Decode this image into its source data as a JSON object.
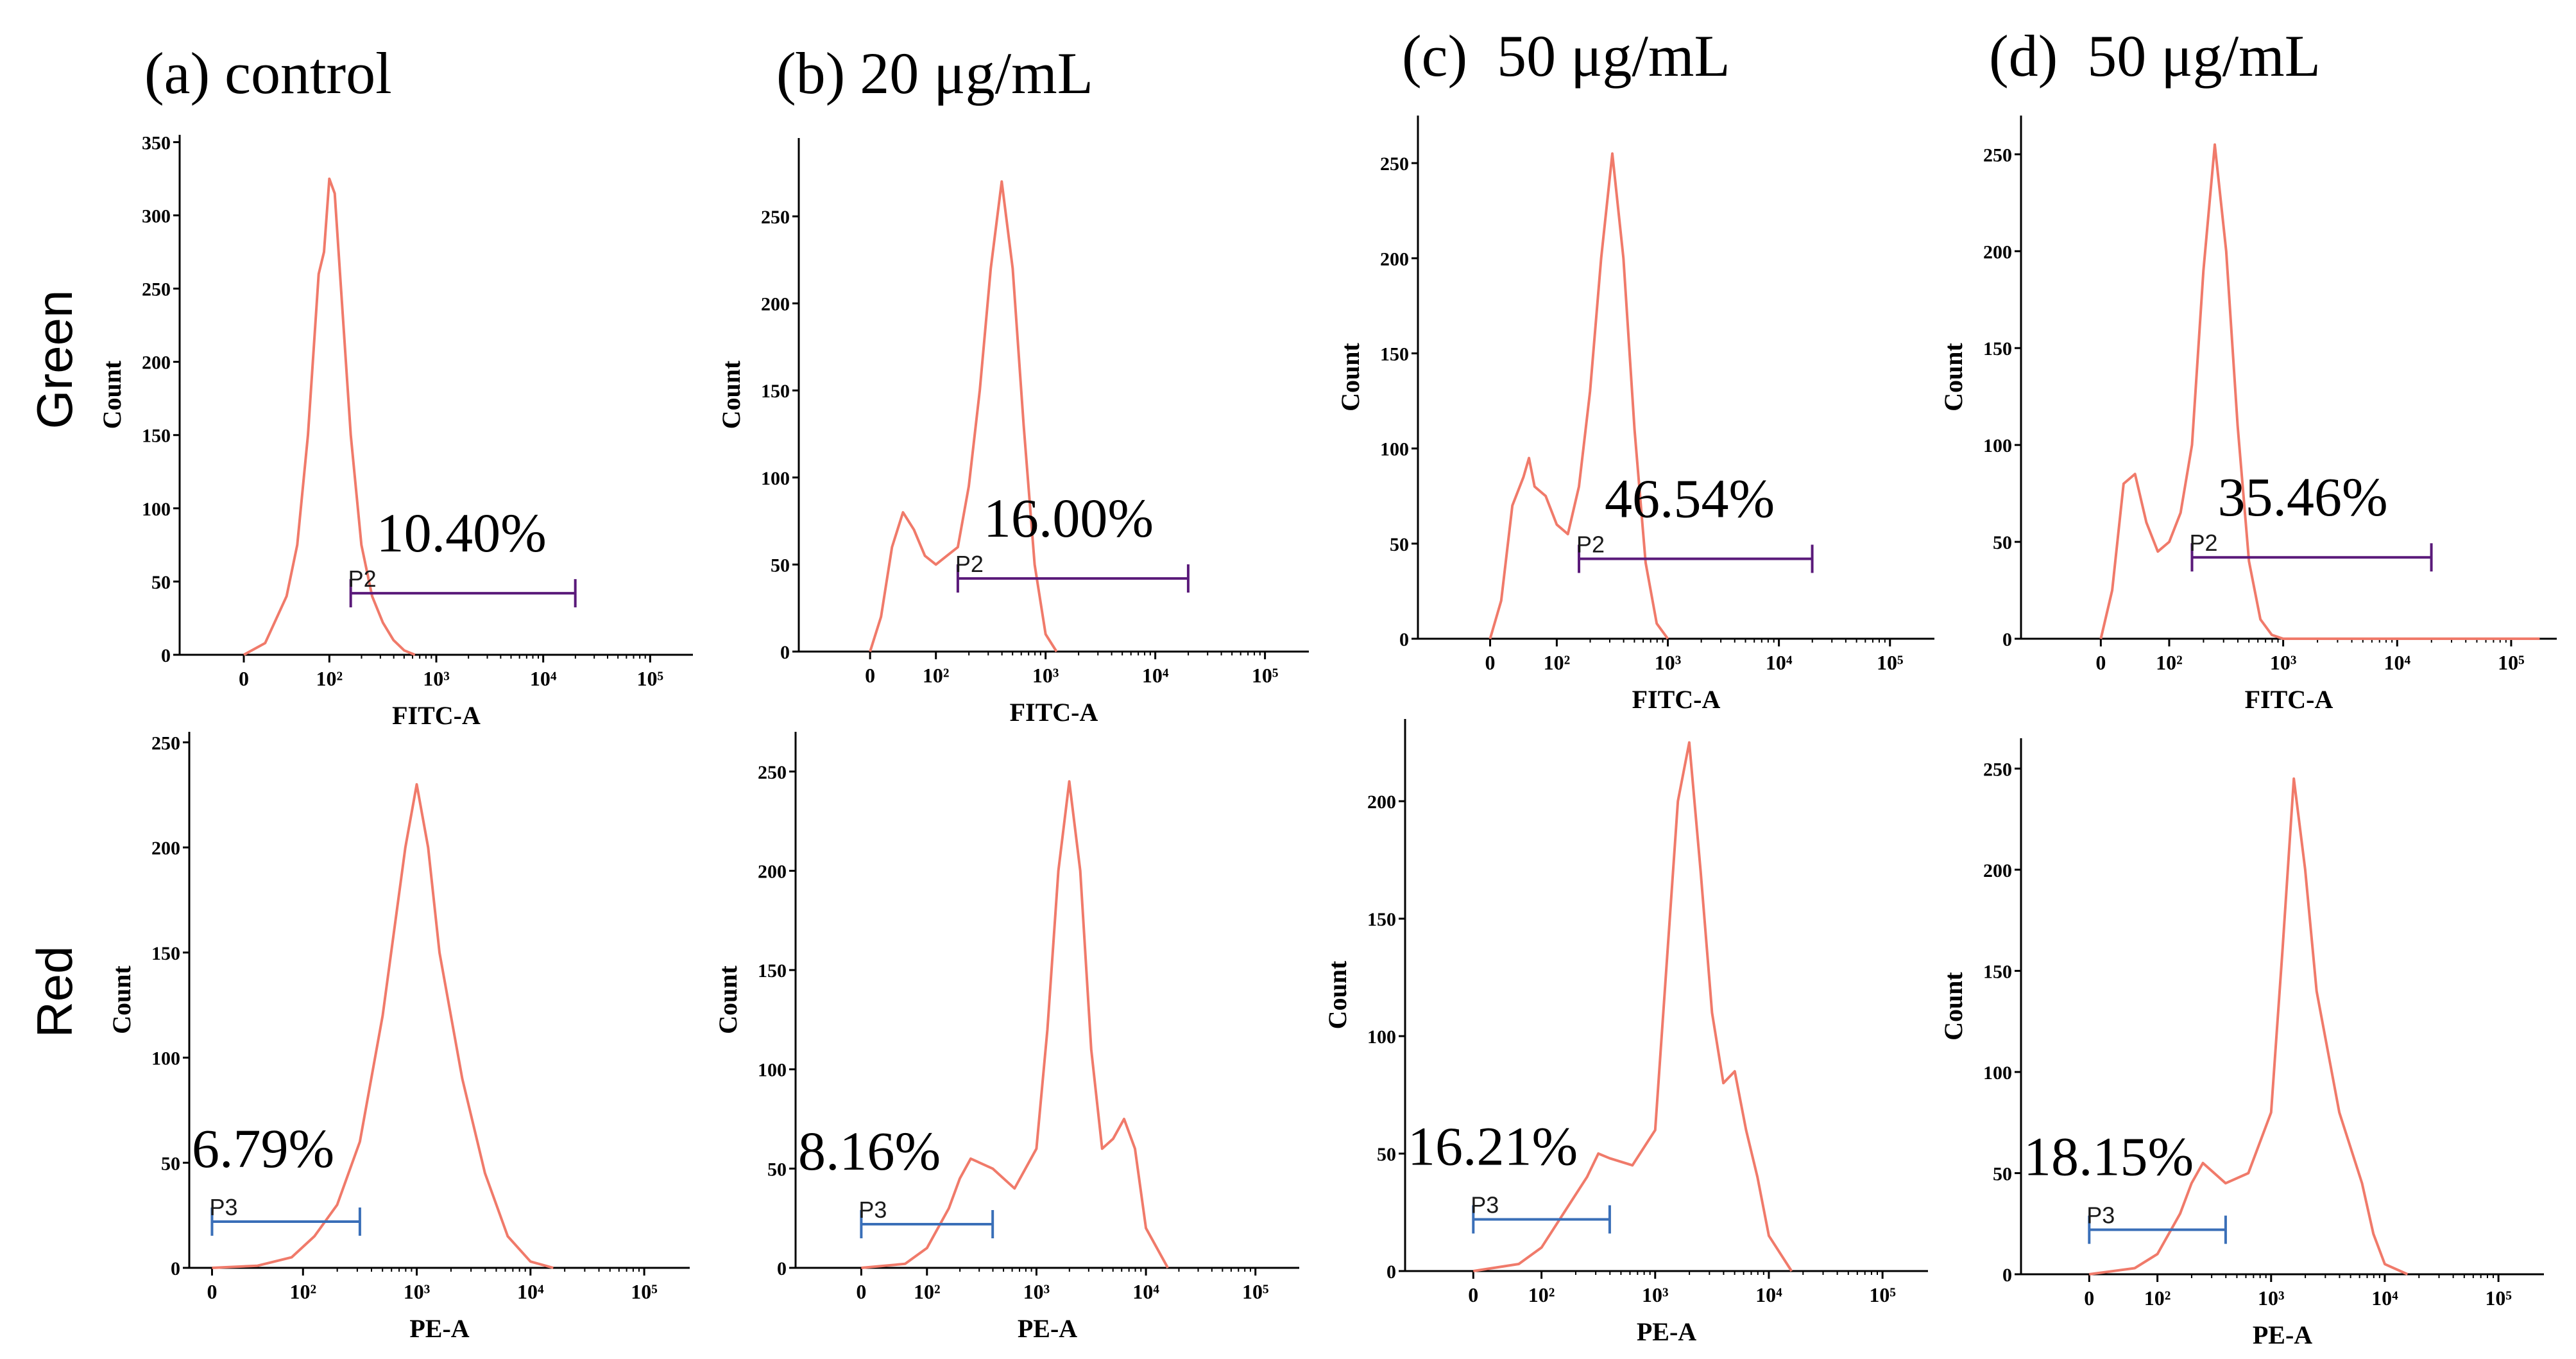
{
  "figure": {
    "row_labels": [
      "Green",
      "Red"
    ],
    "columns": [
      {
        "title": "(a) control"
      },
      {
        "title": "(b) 20 μg/mL"
      },
      {
        "title": "(c)  50 μg/mL"
      },
      {
        "title": "(d)  50 μg/mL"
      }
    ]
  },
  "colors": {
    "curve": "#f07a6a",
    "gate_green": "#5a1a7a",
    "gate_red": "#3a6fb8",
    "axis": "#000000"
  },
  "chart_data": [
    {
      "id": "a-green",
      "type": "line",
      "title": "(a) control",
      "row": "Green",
      "xlabel": "FITC-A",
      "ylabel": "Count",
      "x_ticks": [
        "0",
        "10²",
        "10³",
        "10⁴",
        "10⁵"
      ],
      "y_ticks": [
        0,
        50,
        100,
        150,
        200,
        250,
        300,
        350
      ],
      "ylim": [
        0,
        355
      ],
      "x_unit": "log10 intensity (0 tick at 1.20)",
      "x": [
        1.2,
        1.4,
        1.6,
        1.7,
        1.8,
        1.9,
        1.95,
        2.0,
        2.05,
        2.1,
        2.2,
        2.3,
        2.4,
        2.5,
        2.6,
        2.7,
        2.8
      ],
      "y": [
        0,
        8,
        40,
        75,
        150,
        260,
        275,
        325,
        315,
        260,
        150,
        75,
        40,
        22,
        10,
        3,
        0
      ],
      "gate": {
        "name": "P2",
        "percent": "10.40%",
        "x_start": 2.2,
        "x_end": 4.3,
        "y_level": 42
      }
    },
    {
      "id": "b-green",
      "type": "line",
      "title": "(b) 20 μg/mL",
      "row": "Green",
      "xlabel": "FITC-A",
      "ylabel": "Count",
      "x_ticks": [
        "0",
        "10²",
        "10³",
        "10⁴",
        "10⁵"
      ],
      "y_ticks": [
        0,
        50,
        100,
        150,
        200,
        250
      ],
      "ylim": [
        0,
        295
      ],
      "x_unit": "log10 intensity (0 tick at 1.40)",
      "x": [
        1.4,
        1.5,
        1.6,
        1.7,
        1.8,
        1.9,
        2.0,
        2.1,
        2.2,
        2.3,
        2.4,
        2.5,
        2.6,
        2.7,
        2.8,
        2.9,
        3.0,
        3.1
      ],
      "y": [
        0,
        20,
        60,
        80,
        70,
        55,
        50,
        55,
        60,
        95,
        150,
        220,
        270,
        220,
        130,
        50,
        10,
        0
      ],
      "gate": {
        "name": "P2",
        "percent": "16.00%",
        "x_start": 2.2,
        "x_end": 4.3,
        "y_level": 42
      }
    },
    {
      "id": "c-green",
      "type": "line",
      "title": "(c)  50 μg/mL",
      "row": "Green",
      "xlabel": "FITC-A",
      "ylabel": "Count",
      "x_ticks": [
        "0",
        "10²",
        "10³",
        "10⁴",
        "10⁵"
      ],
      "y_ticks": [
        0,
        50,
        100,
        150,
        200,
        250
      ],
      "ylim": [
        0,
        275
      ],
      "x_unit": "log10 intensity (0 tick at 1.40)",
      "x": [
        1.4,
        1.5,
        1.6,
        1.7,
        1.75,
        1.8,
        1.9,
        2.0,
        2.1,
        2.2,
        2.3,
        2.4,
        2.5,
        2.6,
        2.7,
        2.8,
        2.9,
        3.0
      ],
      "y": [
        0,
        20,
        70,
        85,
        95,
        80,
        75,
        60,
        55,
        80,
        130,
        200,
        255,
        200,
        110,
        40,
        8,
        0
      ],
      "gate": {
        "name": "P2",
        "percent": "46.54%",
        "x_start": 2.2,
        "x_end": 4.3,
        "y_level": 42
      }
    },
    {
      "id": "d-green",
      "type": "line",
      "title": "(d)  50 μg/mL",
      "row": "Green",
      "xlabel": "FITC-A",
      "ylabel": "Count",
      "x_ticks": [
        "0",
        "10²",
        "10³",
        "10⁴",
        "10⁵"
      ],
      "y_ticks": [
        0,
        50,
        100,
        150,
        200,
        250
      ],
      "ylim": [
        0,
        270
      ],
      "x_unit": "log10 intensity (0 tick at 1.40)",
      "x": [
        1.4,
        1.5,
        1.6,
        1.7,
        1.8,
        1.9,
        2.0,
        2.1,
        2.2,
        2.3,
        2.4,
        2.5,
        2.6,
        2.7,
        2.8,
        2.9,
        3.0,
        5.25
      ],
      "y": [
        0,
        25,
        80,
        85,
        60,
        45,
        50,
        65,
        100,
        190,
        255,
        200,
        110,
        40,
        10,
        2,
        0,
        0
      ],
      "gate": {
        "name": "P2",
        "percent": "35.46%",
        "x_start": 2.2,
        "x_end": 4.3,
        "y_level": 42
      }
    },
    {
      "id": "a-red",
      "type": "line",
      "title": "(a) control",
      "row": "Red",
      "xlabel": "PE-A",
      "ylabel": "Count",
      "x_ticks": [
        "0",
        "10²",
        "10³",
        "10⁴",
        "10⁵"
      ],
      "y_ticks": [
        0,
        50,
        100,
        150,
        200,
        250
      ],
      "ylim": [
        0,
        255
      ],
      "x_unit": "log10 intensity (0 tick at 1.20)",
      "x": [
        1.2,
        1.6,
        1.9,
        2.1,
        2.3,
        2.5,
        2.7,
        2.9,
        3.0,
        3.1,
        3.2,
        3.4,
        3.6,
        3.8,
        4.0,
        4.2
      ],
      "y": [
        0,
        1,
        5,
        15,
        30,
        60,
        120,
        200,
        230,
        200,
        150,
        90,
        45,
        15,
        3,
        0
      ],
      "gate": {
        "name": "P3",
        "percent": "6.79%",
        "x_start": 1.2,
        "x_end": 2.5,
        "y_level": 22
      }
    },
    {
      "id": "b-red",
      "type": "line",
      "title": "(b) 20 μg/mL",
      "row": "Red",
      "xlabel": "PE-A",
      "ylabel": "Count",
      "x_ticks": [
        "0",
        "10²",
        "10³",
        "10⁴",
        "10⁵"
      ],
      "y_ticks": [
        0,
        50,
        100,
        150,
        200,
        250
      ],
      "ylim": [
        0,
        270
      ],
      "x_unit": "log10 intensity (0 tick at 1.40)",
      "x": [
        1.4,
        1.8,
        2.0,
        2.2,
        2.3,
        2.4,
        2.6,
        2.8,
        3.0,
        3.1,
        3.2,
        3.3,
        3.4,
        3.5,
        3.6,
        3.7,
        3.8,
        3.9,
        4.0,
        4.2
      ],
      "y": [
        0,
        2,
        10,
        30,
        45,
        55,
        50,
        40,
        60,
        120,
        200,
        245,
        200,
        110,
        60,
        65,
        75,
        60,
        20,
        0
      ],
      "gate": {
        "name": "P3",
        "percent": "8.16%",
        "x_start": 1.4,
        "x_end": 2.6,
        "y_level": 22
      }
    },
    {
      "id": "c-red",
      "type": "line",
      "title": "(c)  50 μg/mL",
      "row": "Red",
      "xlabel": "PE-A",
      "ylabel": "Count",
      "x_ticks": [
        "0",
        "10²",
        "10³",
        "10⁴",
        "10⁵"
      ],
      "y_ticks": [
        0,
        50,
        100,
        150,
        200
      ],
      "ylim": [
        0,
        235
      ],
      "x_unit": "log10 intensity (0 tick at 1.40)",
      "x": [
        1.4,
        1.8,
        2.0,
        2.2,
        2.4,
        2.5,
        2.6,
        2.8,
        3.0,
        3.1,
        3.2,
        3.3,
        3.4,
        3.5,
        3.6,
        3.7,
        3.8,
        3.9,
        4.0,
        4.2
      ],
      "y": [
        0,
        3,
        10,
        25,
        40,
        50,
        48,
        45,
        60,
        130,
        200,
        225,
        170,
        110,
        80,
        85,
        60,
        40,
        15,
        0
      ],
      "gate": {
        "name": "P3",
        "percent": "16.21%",
        "x_start": 1.4,
        "x_end": 2.6,
        "y_level": 22
      }
    },
    {
      "id": "d-red",
      "type": "line",
      "title": "(d)  50 μg/mL",
      "row": "Red",
      "xlabel": "PE-A",
      "ylabel": "Count",
      "x_ticks": [
        "0",
        "10²",
        "10³",
        "10⁴",
        "10⁵"
      ],
      "y_ticks": [
        0,
        50,
        100,
        150,
        200,
        250
      ],
      "ylim": [
        0,
        265
      ],
      "x_unit": "log10 intensity (0 tick at 1.40)",
      "x": [
        1.4,
        1.8,
        2.0,
        2.2,
        2.3,
        2.4,
        2.6,
        2.8,
        3.0,
        3.1,
        3.2,
        3.3,
        3.4,
        3.6,
        3.8,
        3.9,
        4.0,
        4.2
      ],
      "y": [
        0,
        3,
        10,
        30,
        45,
        55,
        45,
        50,
        80,
        160,
        245,
        200,
        140,
        80,
        45,
        20,
        5,
        0
      ],
      "gate": {
        "name": "P3",
        "percent": "18.15%",
        "x_start": 1.4,
        "x_end": 2.6,
        "y_level": 22
      }
    }
  ]
}
